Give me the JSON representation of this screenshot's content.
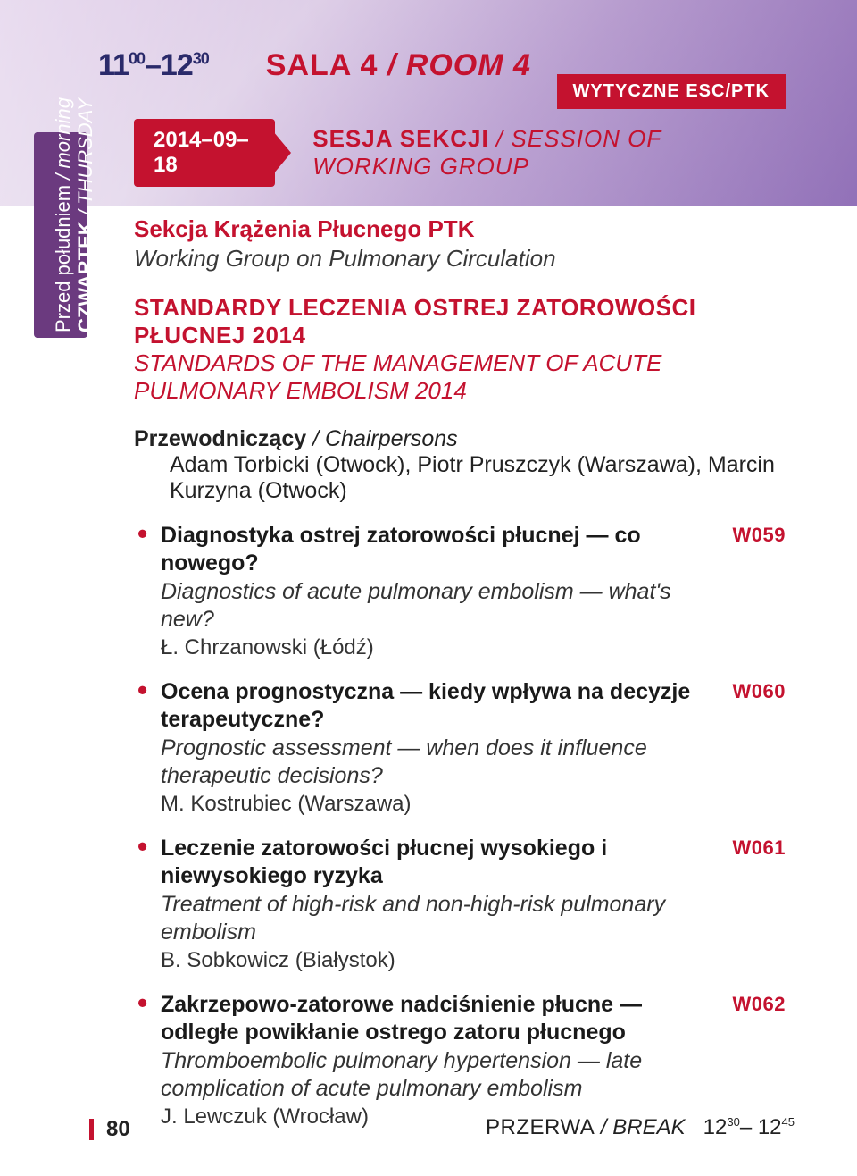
{
  "colors": {
    "accent": "#c4122f",
    "sidebar_bg": "#6b3a7f",
    "text": "#1a1a1a",
    "header_grad_start": "#c8a8d8",
    "header_grad_end": "#9a7cc0",
    "white": "#ffffff"
  },
  "header": {
    "time_start_h": "11",
    "time_start_m": "00",
    "time_end_h": "12",
    "time_end_m": "30",
    "room_main": "SALA 4",
    "room_sep": " / ",
    "room_italic": "ROOM 4"
  },
  "sidebar": {
    "day_pl": "CZWARTEK",
    "day_sep": " / ",
    "day_en": "THURSDAY",
    "sub_pl": "Przed południem",
    "sub_sep": " / ",
    "sub_en": "morning"
  },
  "badge": "WYTYCZNE ESC/PTK",
  "date_chip": "2014–09–18",
  "session": {
    "main": "SESJA SEKCJI",
    "sep": " / ",
    "italic": "SESSION OF WORKING GROUP"
  },
  "group": {
    "pl": "Sekcja Krążenia Płucnego PTK",
    "en": "Working Group on Pulmonary Circulation"
  },
  "standard": {
    "pl": "STANDARDY LECZENIA OSTREJ ZATOROWOŚCI PŁUCNEJ 2014",
    "en": "STANDARDS OF THE MANAGEMENT OF ACUTE PULMONARY EMBOLISM 2014"
  },
  "chair": {
    "label_pl": "Przewodniczący",
    "label_sep": " / ",
    "label_en": "Chairpersons",
    "names": "Adam Torbicki (Otwock), Piotr Pruszczyk (Warszawa), Marcin Kurzyna (Otwock)"
  },
  "items": [
    {
      "code": "W059",
      "pl": "Diagnostyka ostrej zatorowości płucnej — co nowego?",
      "en": "Diagnostics of acute pulmonary embolism — what's new?",
      "author": "Ł. Chrzanowski (Łódź)"
    },
    {
      "code": "W060",
      "pl": "Ocena prognostyczna — kiedy wpływa na decyzje terapeutyczne?",
      "en": "Prognostic assessment — when does it influence therapeutic decisions?",
      "author": "M. Kostrubiec (Warszawa)"
    },
    {
      "code": "W061",
      "pl": "Leczenie zatorowości płucnej wysokiego i niewysokiego ryzyka",
      "en": "Treatment of high-risk and non-high-risk pulmonary embolism",
      "author": "B. Sobkowicz (Białystok)"
    },
    {
      "code": "W062",
      "pl": "Zakrzepowo-zatorowe nadciśnienie płucne — odległe powikłanie ostrego zatoru płucnego",
      "en": "Thromboembolic pulmonary hypertension — late complication of acute pulmonary embolism",
      "author": "J. Lewczuk (Wrocław)"
    }
  ],
  "footer": {
    "page": "80",
    "break_pl": "PRZERWA",
    "break_sep": " / ",
    "break_en": "BREAK",
    "t1_h": "12",
    "t1_m": "30",
    "t2_h": "12",
    "t2_m": "45"
  }
}
